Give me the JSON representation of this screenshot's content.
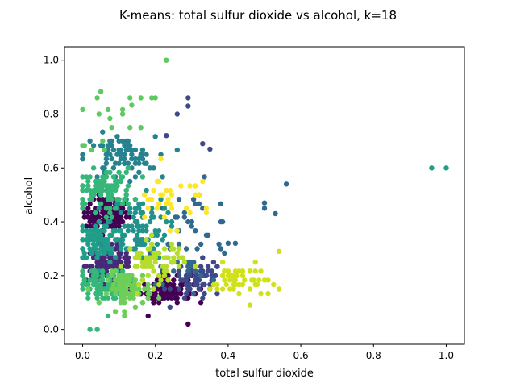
{
  "chart_data": {
    "type": "scatter",
    "title": "K-means: total sulfur dioxide vs alcohol, k=18",
    "xlabel": "total sulfur dioxide",
    "ylabel": "alcohol",
    "xlim": [
      -0.05,
      1.05
    ],
    "ylim": [
      -0.055,
      1.05
    ],
    "xticks": [
      "0.0",
      "0.2",
      "0.4",
      "0.6",
      "0.8",
      "1.0"
    ],
    "yticks": [
      "0.0",
      "0.2",
      "0.4",
      "0.6",
      "0.8",
      "1.0"
    ],
    "grid": false,
    "legend": "none",
    "clusters": [
      {
        "color": "#440154",
        "cx": 0.065,
        "cy": 0.43,
        "sx": 0.03,
        "sy": 0.03,
        "n": 140
      },
      {
        "color": "#440154",
        "cx": 0.23,
        "cy": 0.15,
        "sx": 0.035,
        "sy": 0.025,
        "n": 120
      },
      {
        "color": "#482878",
        "cx": 0.07,
        "cy": 0.24,
        "sx": 0.03,
        "sy": 0.03,
        "n": 140
      },
      {
        "color": "#3e4989",
        "cx": 0.32,
        "cy": 0.18,
        "sx": 0.035,
        "sy": 0.035,
        "n": 70
      },
      {
        "color": "#31688e",
        "cx": 0.3,
        "cy": 0.35,
        "sx": 0.06,
        "sy": 0.09,
        "n": 50
      },
      {
        "color": "#26828e",
        "cx": 0.1,
        "cy": 0.64,
        "sx": 0.05,
        "sy": 0.04,
        "n": 80
      },
      {
        "color": "#1f9e89",
        "cx": 0.05,
        "cy": 0.33,
        "sx": 0.035,
        "sy": 0.04,
        "n": 100
      },
      {
        "color": "#21918c",
        "cx": 0.15,
        "cy": 0.38,
        "sx": 0.04,
        "sy": 0.06,
        "n": 90
      },
      {
        "color": "#35b779",
        "cx": 0.06,
        "cy": 0.16,
        "sx": 0.035,
        "sy": 0.03,
        "n": 110
      },
      {
        "color": "#35b779",
        "cx": 0.06,
        "cy": 0.52,
        "sx": 0.04,
        "sy": 0.04,
        "n": 100
      },
      {
        "color": "#6ece58",
        "cx": 0.13,
        "cy": 0.15,
        "sx": 0.03,
        "sy": 0.03,
        "n": 90
      },
      {
        "color": "#5ec962",
        "cx": 0.07,
        "cy": 0.77,
        "sx": 0.05,
        "sy": 0.05,
        "n": 15
      },
      {
        "color": "#b5de2b",
        "cx": 0.2,
        "cy": 0.25,
        "sx": 0.04,
        "sy": 0.04,
        "n": 70
      },
      {
        "color": "#d0e11c",
        "cx": 0.43,
        "cy": 0.18,
        "sx": 0.04,
        "sy": 0.03,
        "n": 50
      },
      {
        "color": "#fde725",
        "cx": 0.24,
        "cy": 0.49,
        "sx": 0.06,
        "sy": 0.05,
        "n": 35
      }
    ],
    "points": [
      {
        "x": 0.23,
        "y": 1.0,
        "color": "#5ec962"
      },
      {
        "x": 0.96,
        "y": 0.6,
        "color": "#1f9e89"
      },
      {
        "x": 1.0,
        "y": 0.6,
        "color": "#1f9e89"
      },
      {
        "x": 0.56,
        "y": 0.54,
        "color": "#31688e"
      },
      {
        "x": 0.5,
        "y": 0.47,
        "color": "#31688e"
      },
      {
        "x": 0.5,
        "y": 0.45,
        "color": "#31688e"
      },
      {
        "x": 0.53,
        "y": 0.43,
        "color": "#31688e"
      },
      {
        "x": 0.54,
        "y": 0.29,
        "color": "#d0e11c"
      },
      {
        "x": 0.04,
        "y": 0.86,
        "color": "#5ec962"
      },
      {
        "x": 0.13,
        "y": 0.86,
        "color": "#5ec962"
      },
      {
        "x": 0.16,
        "y": 0.86,
        "color": "#5ec962"
      },
      {
        "x": 0.19,
        "y": 0.86,
        "color": "#5ec962"
      },
      {
        "x": 0.2,
        "y": 0.86,
        "color": "#5ec962"
      },
      {
        "x": 0.11,
        "y": 0.8,
        "color": "#5ec962"
      },
      {
        "x": 0.29,
        "y": 0.86,
        "color": "#3e4989"
      },
      {
        "x": 0.29,
        "y": 0.83,
        "color": "#3e4989"
      },
      {
        "x": 0.26,
        "y": 0.8,
        "color": "#3e4989"
      },
      {
        "x": 0.23,
        "y": 0.72,
        "color": "#3e4989"
      },
      {
        "x": 0.33,
        "y": 0.69,
        "color": "#3e4989"
      },
      {
        "x": 0.35,
        "y": 0.67,
        "color": "#3e4989"
      },
      {
        "x": 0.02,
        "y": 0.0,
        "color": "#35b779"
      },
      {
        "x": 0.04,
        "y": 0.0,
        "color": "#35b779"
      },
      {
        "x": 0.07,
        "y": 0.05,
        "color": "#35b779"
      },
      {
        "x": 0.29,
        "y": 0.02,
        "color": "#440154"
      },
      {
        "x": 0.18,
        "y": 0.05,
        "color": "#440154"
      },
      {
        "x": 0.46,
        "y": 0.09,
        "color": "#d0e11c"
      },
      {
        "x": 0.4,
        "y": 0.32,
        "color": "#31688e"
      },
      {
        "x": 0.42,
        "y": 0.32,
        "color": "#31688e"
      }
    ]
  }
}
